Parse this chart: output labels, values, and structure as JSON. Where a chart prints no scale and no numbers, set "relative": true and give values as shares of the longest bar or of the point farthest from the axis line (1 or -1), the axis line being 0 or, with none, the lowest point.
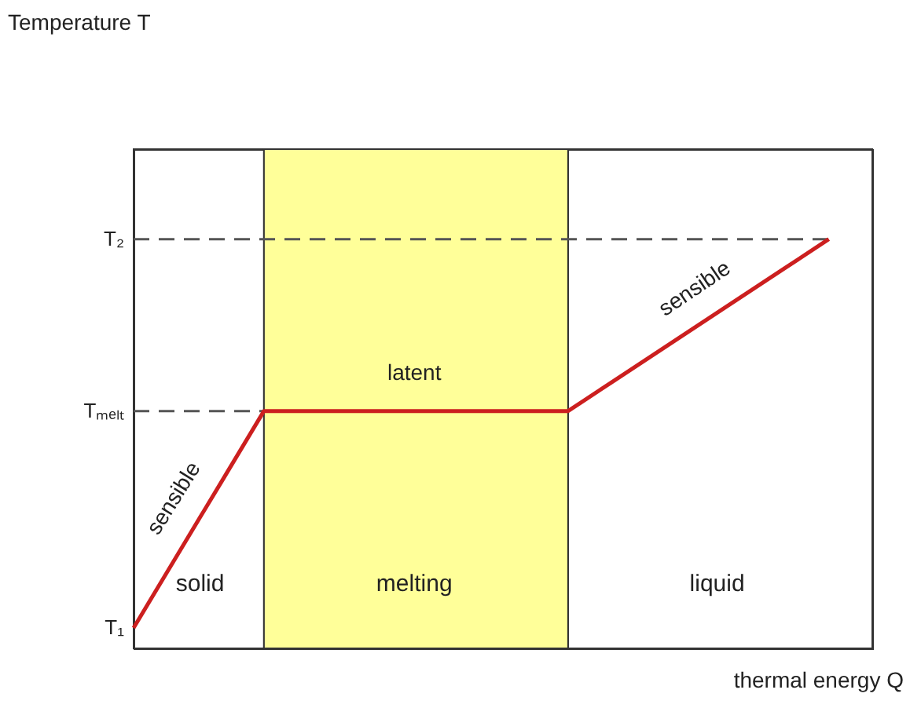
{
  "chart_data": {
    "type": "line",
    "relative": true,
    "xlabel": "thermal energy Q",
    "categories": [
      null,
      null,
      null,
      null,
      null,
      null,
      null,
      null,
      null,
      null,
      null,
      null,
      null,
      null,
      null,
      null,
      null,
      null
    ],
    "series": [
      {
        "color": "#cc1f1f",
        "values": [
          0.05,
          0.227,
          0.403,
          0.58,
          0.58,
          0.58,
          0.58,
          0.58,
          0.58,
          0.58,
          0.58,
          0.65,
          0.72,
          0.79,
          0.86,
          0.93,
          1,
          null
        ]
      }
    ],
    "ref_lines": [
      {
        "axis": "y",
        "value": 0.58,
        "color": "#555555",
        "line_style": "dashed"
      },
      {
        "axis": "y",
        "value": 1,
        "color": "#555555",
        "line_style": "dashed"
      }
    ],
    "annotations": [
      "sensible",
      "latent",
      "sensible",
      "solid",
      "melting",
      "liquid",
      "T₁",
      "Tₘₑₗₜ",
      "T₂",
      "Temperature T"
    ],
    "marker": "none",
    "line_style": "solid"
  }
}
